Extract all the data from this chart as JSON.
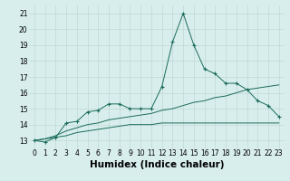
{
  "xlabel": "Humidex (Indice chaleur)",
  "x_values": [
    0,
    1,
    2,
    3,
    4,
    5,
    6,
    7,
    8,
    9,
    10,
    11,
    12,
    13,
    14,
    15,
    16,
    17,
    18,
    19,
    20,
    21,
    22,
    23
  ],
  "line1_y": [
    13.0,
    12.9,
    13.2,
    14.1,
    14.2,
    14.8,
    14.9,
    15.3,
    15.3,
    15.0,
    15.0,
    15.0,
    16.4,
    19.2,
    21.0,
    19.0,
    17.5,
    17.2,
    16.6,
    16.6,
    16.2,
    15.5,
    15.2,
    14.5
  ],
  "line2_y": [
    13.0,
    13.1,
    13.2,
    13.3,
    13.5,
    13.6,
    13.7,
    13.8,
    13.9,
    14.0,
    14.0,
    14.0,
    14.1,
    14.1,
    14.1,
    14.1,
    14.1,
    14.1,
    14.1,
    14.1,
    14.1,
    14.1,
    14.1,
    14.1
  ],
  "line3_y": [
    13.0,
    13.1,
    13.3,
    13.6,
    13.8,
    14.0,
    14.1,
    14.3,
    14.4,
    14.5,
    14.6,
    14.7,
    14.9,
    15.0,
    15.2,
    15.4,
    15.5,
    15.7,
    15.8,
    16.0,
    16.2,
    16.3,
    16.4,
    16.5
  ],
  "line_color": "#1a6b5a",
  "bg_color": "#d8eeec",
  "grid_color": "#c0d8d5",
  "xlim": [
    -0.5,
    23.5
  ],
  "ylim": [
    12.5,
    21.5
  ],
  "yticks": [
    13,
    14,
    15,
    16,
    17,
    18,
    19,
    20,
    21
  ],
  "xtick_labels": [
    "0",
    "1",
    "2",
    "3",
    "4",
    "5",
    "6",
    "7",
    "8",
    "9",
    "10",
    "11",
    "12",
    "13",
    "14",
    "15",
    "16",
    "17",
    "18",
    "19",
    "20",
    "21",
    "22",
    "23"
  ],
  "tick_fontsize": 5.5,
  "label_fontsize": 7.5
}
